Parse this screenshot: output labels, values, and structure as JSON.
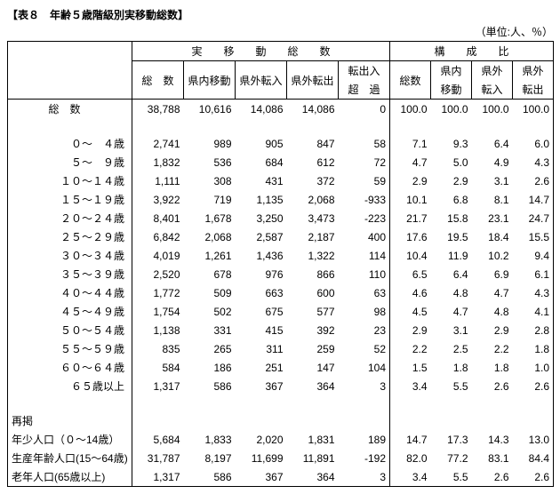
{
  "title": "【表８　年齢５歳階級別実移動総数】",
  "unit": "（単位:人、％）",
  "headers": {
    "group_actual": "実　　移　　動　　総　　数",
    "group_ratio": "構　　成　　比",
    "sub_total": "総　数",
    "sub_inpref": "県内移動",
    "sub_in": "県外転入",
    "sub_out": "県外転出",
    "sub_net1": "転出入",
    "sub_net2": "超　過",
    "r_total": "総数",
    "r_inpref1": "県内",
    "r_inpref2": "移動",
    "r_in1": "県外",
    "r_in2": "転入",
    "r_out1": "県外",
    "r_out2": "転出"
  },
  "grand_label": "総数",
  "grand": {
    "total": "38,788",
    "inpref": "10,616",
    "in": "14,086",
    "out": "14,086",
    "net": "0",
    "r_total": "100.0",
    "r_inpref": "100.0",
    "r_in": "100.0",
    "r_out": "100.0"
  },
  "rows": [
    {
      "label": "０～　４歳",
      "total": "2,741",
      "inpref": "989",
      "in": "905",
      "out": "847",
      "net": "58",
      "r_total": "7.1",
      "r_inpref": "9.3",
      "r_in": "6.4",
      "r_out": "6.0"
    },
    {
      "label": "５～　９歳",
      "total": "1,832",
      "inpref": "536",
      "in": "684",
      "out": "612",
      "net": "72",
      "r_total": "4.7",
      "r_inpref": "5.0",
      "r_in": "4.9",
      "r_out": "4.3"
    },
    {
      "label": "１０～１４歳",
      "total": "1,111",
      "inpref": "308",
      "in": "431",
      "out": "372",
      "net": "59",
      "r_total": "2.9",
      "r_inpref": "2.9",
      "r_in": "3.1",
      "r_out": "2.6"
    },
    {
      "label": "１５～１９歳",
      "total": "3,922",
      "inpref": "719",
      "in": "1,135",
      "out": "2,068",
      "net": "-933",
      "r_total": "10.1",
      "r_inpref": "6.8",
      "r_in": "8.1",
      "r_out": "14.7"
    },
    {
      "label": "２０～２４歳",
      "total": "8,401",
      "inpref": "1,678",
      "in": "3,250",
      "out": "3,473",
      "net": "-223",
      "r_total": "21.7",
      "r_inpref": "15.8",
      "r_in": "23.1",
      "r_out": "24.7"
    },
    {
      "label": "２５～２９歳",
      "total": "6,842",
      "inpref": "2,068",
      "in": "2,587",
      "out": "2,187",
      "net": "400",
      "r_total": "17.6",
      "r_inpref": "19.5",
      "r_in": "18.4",
      "r_out": "15.5"
    },
    {
      "label": "３０～３４歳",
      "total": "4,019",
      "inpref": "1,261",
      "in": "1,436",
      "out": "1,322",
      "net": "114",
      "r_total": "10.4",
      "r_inpref": "11.9",
      "r_in": "10.2",
      "r_out": "9.4"
    },
    {
      "label": "３５～３９歳",
      "total": "2,520",
      "inpref": "678",
      "in": "976",
      "out": "866",
      "net": "110",
      "r_total": "6.5",
      "r_inpref": "6.4",
      "r_in": "6.9",
      "r_out": "6.1"
    },
    {
      "label": "４０～４４歳",
      "total": "1,772",
      "inpref": "509",
      "in": "663",
      "out": "600",
      "net": "63",
      "r_total": "4.6",
      "r_inpref": "4.8",
      "r_in": "4.7",
      "r_out": "4.3"
    },
    {
      "label": "４５～４９歳",
      "total": "1,754",
      "inpref": "502",
      "in": "675",
      "out": "577",
      "net": "98",
      "r_total": "4.5",
      "r_inpref": "4.7",
      "r_in": "4.8",
      "r_out": "4.1"
    },
    {
      "label": "５０～５４歳",
      "total": "1,138",
      "inpref": "331",
      "in": "415",
      "out": "392",
      "net": "23",
      "r_total": "2.9",
      "r_inpref": "3.1",
      "r_in": "2.9",
      "r_out": "2.8"
    },
    {
      "label": "５５～５９歳",
      "total": "835",
      "inpref": "265",
      "in": "311",
      "out": "259",
      "net": "52",
      "r_total": "2.2",
      "r_inpref": "2.5",
      "r_in": "2.2",
      "r_out": "1.8"
    },
    {
      "label": "６０～６４歳",
      "total": "584",
      "inpref": "186",
      "in": "251",
      "out": "147",
      "net": "104",
      "r_total": "1.5",
      "r_inpref": "1.8",
      "r_in": "1.8",
      "r_out": "1.0"
    },
    {
      "label": "６５歳以上",
      "total": "1,317",
      "inpref": "586",
      "in": "367",
      "out": "364",
      "net": "3",
      "r_total": "3.4",
      "r_inpref": "5.5",
      "r_in": "2.6",
      "r_out": "2.6"
    }
  ],
  "relisted_label": "再掲",
  "relisted": [
    {
      "label": "年少人口（０～14歳）",
      "total": "5,684",
      "inpref": "1,833",
      "in": "2,020",
      "out": "1,831",
      "net": "189",
      "r_total": "14.7",
      "r_inpref": "17.3",
      "r_in": "14.3",
      "r_out": "13.0"
    },
    {
      "label": "生産年齢人口(15～64歳)",
      "total": "31,787",
      "inpref": "8,197",
      "in": "11,699",
      "out": "11,891",
      "net": "-192",
      "r_total": "82.0",
      "r_inpref": "77.2",
      "r_in": "83.1",
      "r_out": "84.4"
    },
    {
      "label": "老年人口(65歳以上)",
      "total": "1,317",
      "inpref": "586",
      "in": "367",
      "out": "364",
      "net": "3",
      "r_total": "3.4",
      "r_inpref": "5.5",
      "r_in": "2.6",
      "r_out": "2.6"
    }
  ]
}
